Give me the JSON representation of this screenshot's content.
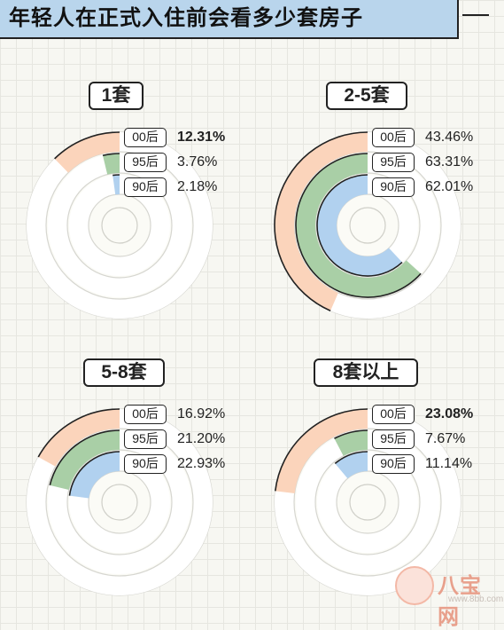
{
  "title": "年轻人在正式入住前会看多少套房子",
  "watermark": {
    "name": "八宝网",
    "url": "www.8bb.com"
  },
  "colors": {
    "00后": "#fbd4bb",
    "95后": "#a9cfa6",
    "90后": "#b1d1ef",
    "track": "#ffffff",
    "title_bg": "#b9d5ec"
  },
  "chart_data": [
    {
      "type": "radial-bar",
      "label": "1套",
      "series": [
        {
          "name": "00后",
          "value": 12.31,
          "value_text": "12.31%",
          "bold": true
        },
        {
          "name": "95后",
          "value": 3.76,
          "value_text": "3.76%",
          "bold": false
        },
        {
          "name": "90后",
          "value": 2.18,
          "value_text": "2.18%",
          "bold": false
        }
      ]
    },
    {
      "type": "radial-bar",
      "label": "2-5套",
      "series": [
        {
          "name": "00后",
          "value": 43.46,
          "value_text": "43.46%",
          "bold": false
        },
        {
          "name": "95后",
          "value": 63.31,
          "value_text": "63.31%",
          "bold": false
        },
        {
          "name": "90后",
          "value": 62.01,
          "value_text": "62.01%",
          "bold": false
        }
      ]
    },
    {
      "type": "radial-bar",
      "label": "5-8套",
      "series": [
        {
          "name": "00后",
          "value": 16.92,
          "value_text": "16.92%",
          "bold": false
        },
        {
          "name": "95后",
          "value": 21.2,
          "value_text": "21.20%",
          "bold": false
        },
        {
          "name": "90后",
          "value": 22.93,
          "value_text": "22.93%",
          "bold": false
        }
      ]
    },
    {
      "type": "radial-bar",
      "label": "8套以上",
      "series": [
        {
          "name": "00后",
          "value": 23.08,
          "value_text": "23.08%",
          "bold": true
        },
        {
          "name": "95后",
          "value": 7.67,
          "value_text": "7.67%",
          "bold": false
        },
        {
          "name": "90后",
          "value": 11.14,
          "value_text": "11.14%",
          "bold": false
        }
      ]
    }
  ]
}
